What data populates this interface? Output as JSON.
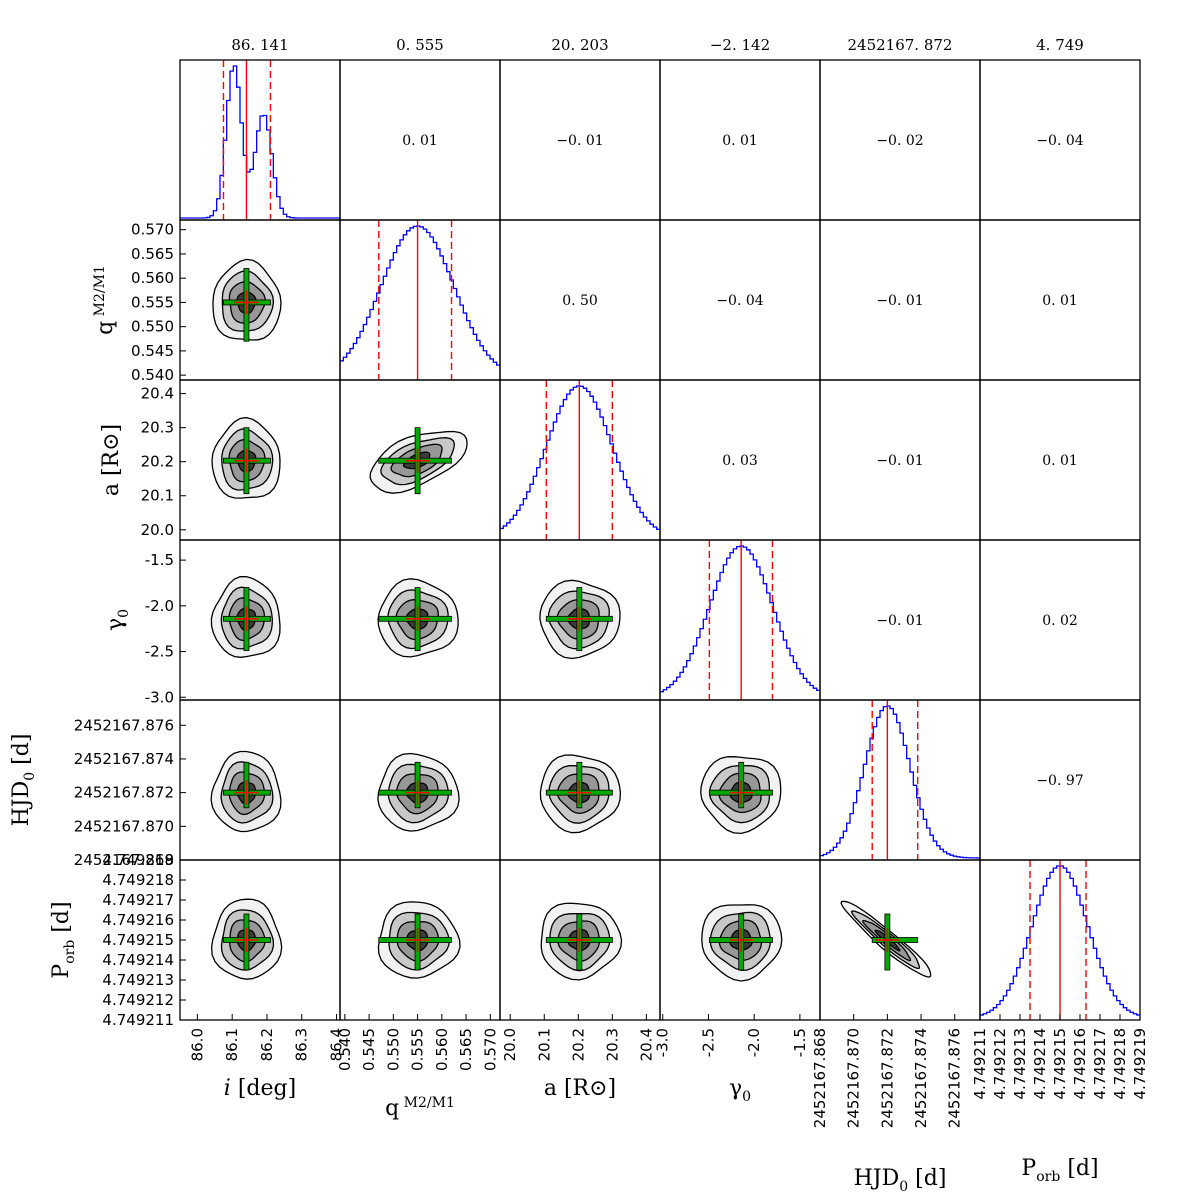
{
  "chart_data": {
    "type": "corner",
    "title": "",
    "parameters": [
      {
        "key": "i",
        "median": 86.141,
        "median_label": "86. 141",
        "lo": 86.075,
        "hi": 86.21,
        "range": [
          85.95,
          86.41
        ],
        "ticks": [
          86.0,
          86.1,
          86.2,
          86.3,
          86.4
        ],
        "tick_labels": [
          "86.0",
          "86.1",
          "86.2",
          "86.3",
          "86.4"
        ],
        "label": {
          "main": "i",
          "italic": true,
          "unit": "[deg]"
        }
      },
      {
        "key": "q",
        "median": 0.555,
        "median_label": "0. 555",
        "lo": 0.547,
        "hi": 0.562,
        "range": [
          0.539,
          0.572
        ],
        "ticks": [
          0.54,
          0.545,
          0.55,
          0.555,
          0.56,
          0.565,
          0.57
        ],
        "tick_labels": [
          "0.540",
          "0.545",
          "0.550",
          "0.555",
          "0.560",
          "0.565",
          "0.570"
        ],
        "label": {
          "main": "q",
          "sub_num": "M2",
          "sub_den": "M1"
        }
      },
      {
        "key": "a",
        "median": 20.203,
        "median_label": "20. 203",
        "lo": 20.106,
        "hi": 20.3,
        "range": [
          19.97,
          20.44
        ],
        "ticks": [
          20.0,
          20.1,
          20.2,
          20.3,
          20.4
        ],
        "tick_labels": [
          "20.0",
          "20.1",
          "20.2",
          "20.3",
          "20.4"
        ],
        "label": {
          "main": "a",
          "unit": "[R⊙]"
        }
      },
      {
        "key": "gamma0",
        "median": -2.142,
        "median_label": "−2. 142",
        "lo": -2.49,
        "hi": -1.8,
        "range": [
          -3.03,
          -1.28
        ],
        "ticks": [
          -3.0,
          -2.5,
          -2.0,
          -1.5
        ],
        "tick_labels": [
          "-3.0",
          "-2.5",
          "-2.0",
          "-1.5"
        ],
        "label": {
          "main": "γ0"
        }
      },
      {
        "key": "HJD0",
        "median": 2452167.872,
        "median_label": "2452167. 872",
        "lo": 2452167.8711,
        "hi": 2452167.8738,
        "range": [
          2452167.868,
          2452167.8775
        ],
        "ticks": [
          2452167.868,
          2452167.87,
          2452167.872,
          2452167.874,
          2452167.876
        ],
        "tick_labels": [
          "2452167.868",
          "2452167.870",
          "2452167.872",
          "2452167.874",
          "2452167.876"
        ],
        "label": {
          "main": "HJD0",
          "unit": "[d]"
        }
      },
      {
        "key": "Porb",
        "median": 4.749215,
        "median_label": "4. 749",
        "lo": 4.7492135,
        "hi": 4.7492163,
        "range": [
          4.749211,
          4.749219
        ],
        "ticks": [
          4.749211,
          4.749212,
          4.749213,
          4.749214,
          4.749215,
          4.749216,
          4.749217,
          4.749218,
          4.749219
        ],
        "tick_labels": [
          "4.749211",
          "4.749212",
          "4.749213",
          "4.749214",
          "4.749215",
          "4.749216",
          "4.749217",
          "4.749218",
          "4.749219"
        ],
        "label": {
          "main": "Porb",
          "unit": "[d]"
        }
      }
    ],
    "correlations": [
      {
        "row": 0,
        "col": 1,
        "value": "0. 01"
      },
      {
        "row": 0,
        "col": 2,
        "value": "−0. 01"
      },
      {
        "row": 0,
        "col": 3,
        "value": "0. 01"
      },
      {
        "row": 0,
        "col": 4,
        "value": "−0. 02"
      },
      {
        "row": 0,
        "col": 5,
        "value": "−0. 04"
      },
      {
        "row": 1,
        "col": 2,
        "value": "0. 50"
      },
      {
        "row": 1,
        "col": 3,
        "value": "−0. 04"
      },
      {
        "row": 1,
        "col": 4,
        "value": "−0. 01"
      },
      {
        "row": 1,
        "col": 5,
        "value": "0. 01"
      },
      {
        "row": 2,
        "col": 3,
        "value": "0. 03"
      },
      {
        "row": 2,
        "col": 4,
        "value": "−0. 01"
      },
      {
        "row": 2,
        "col": 5,
        "value": "0. 01"
      },
      {
        "row": 3,
        "col": 4,
        "value": "−0. 01"
      },
      {
        "row": 3,
        "col": 5,
        "value": "0. 02"
      },
      {
        "row": 4,
        "col": 5,
        "value": "−0. 97"
      }
    ],
    "colors": {
      "histogram": "#0000ff",
      "median_line": "#ff0000",
      "interval_line": "#ff0000",
      "error_bars": "#00aa00",
      "contour_fills": [
        "#f2f2f2",
        "#c8c8c8",
        "#979797",
        "#3c3c3c"
      ],
      "contour_line": "#000000"
    }
  }
}
